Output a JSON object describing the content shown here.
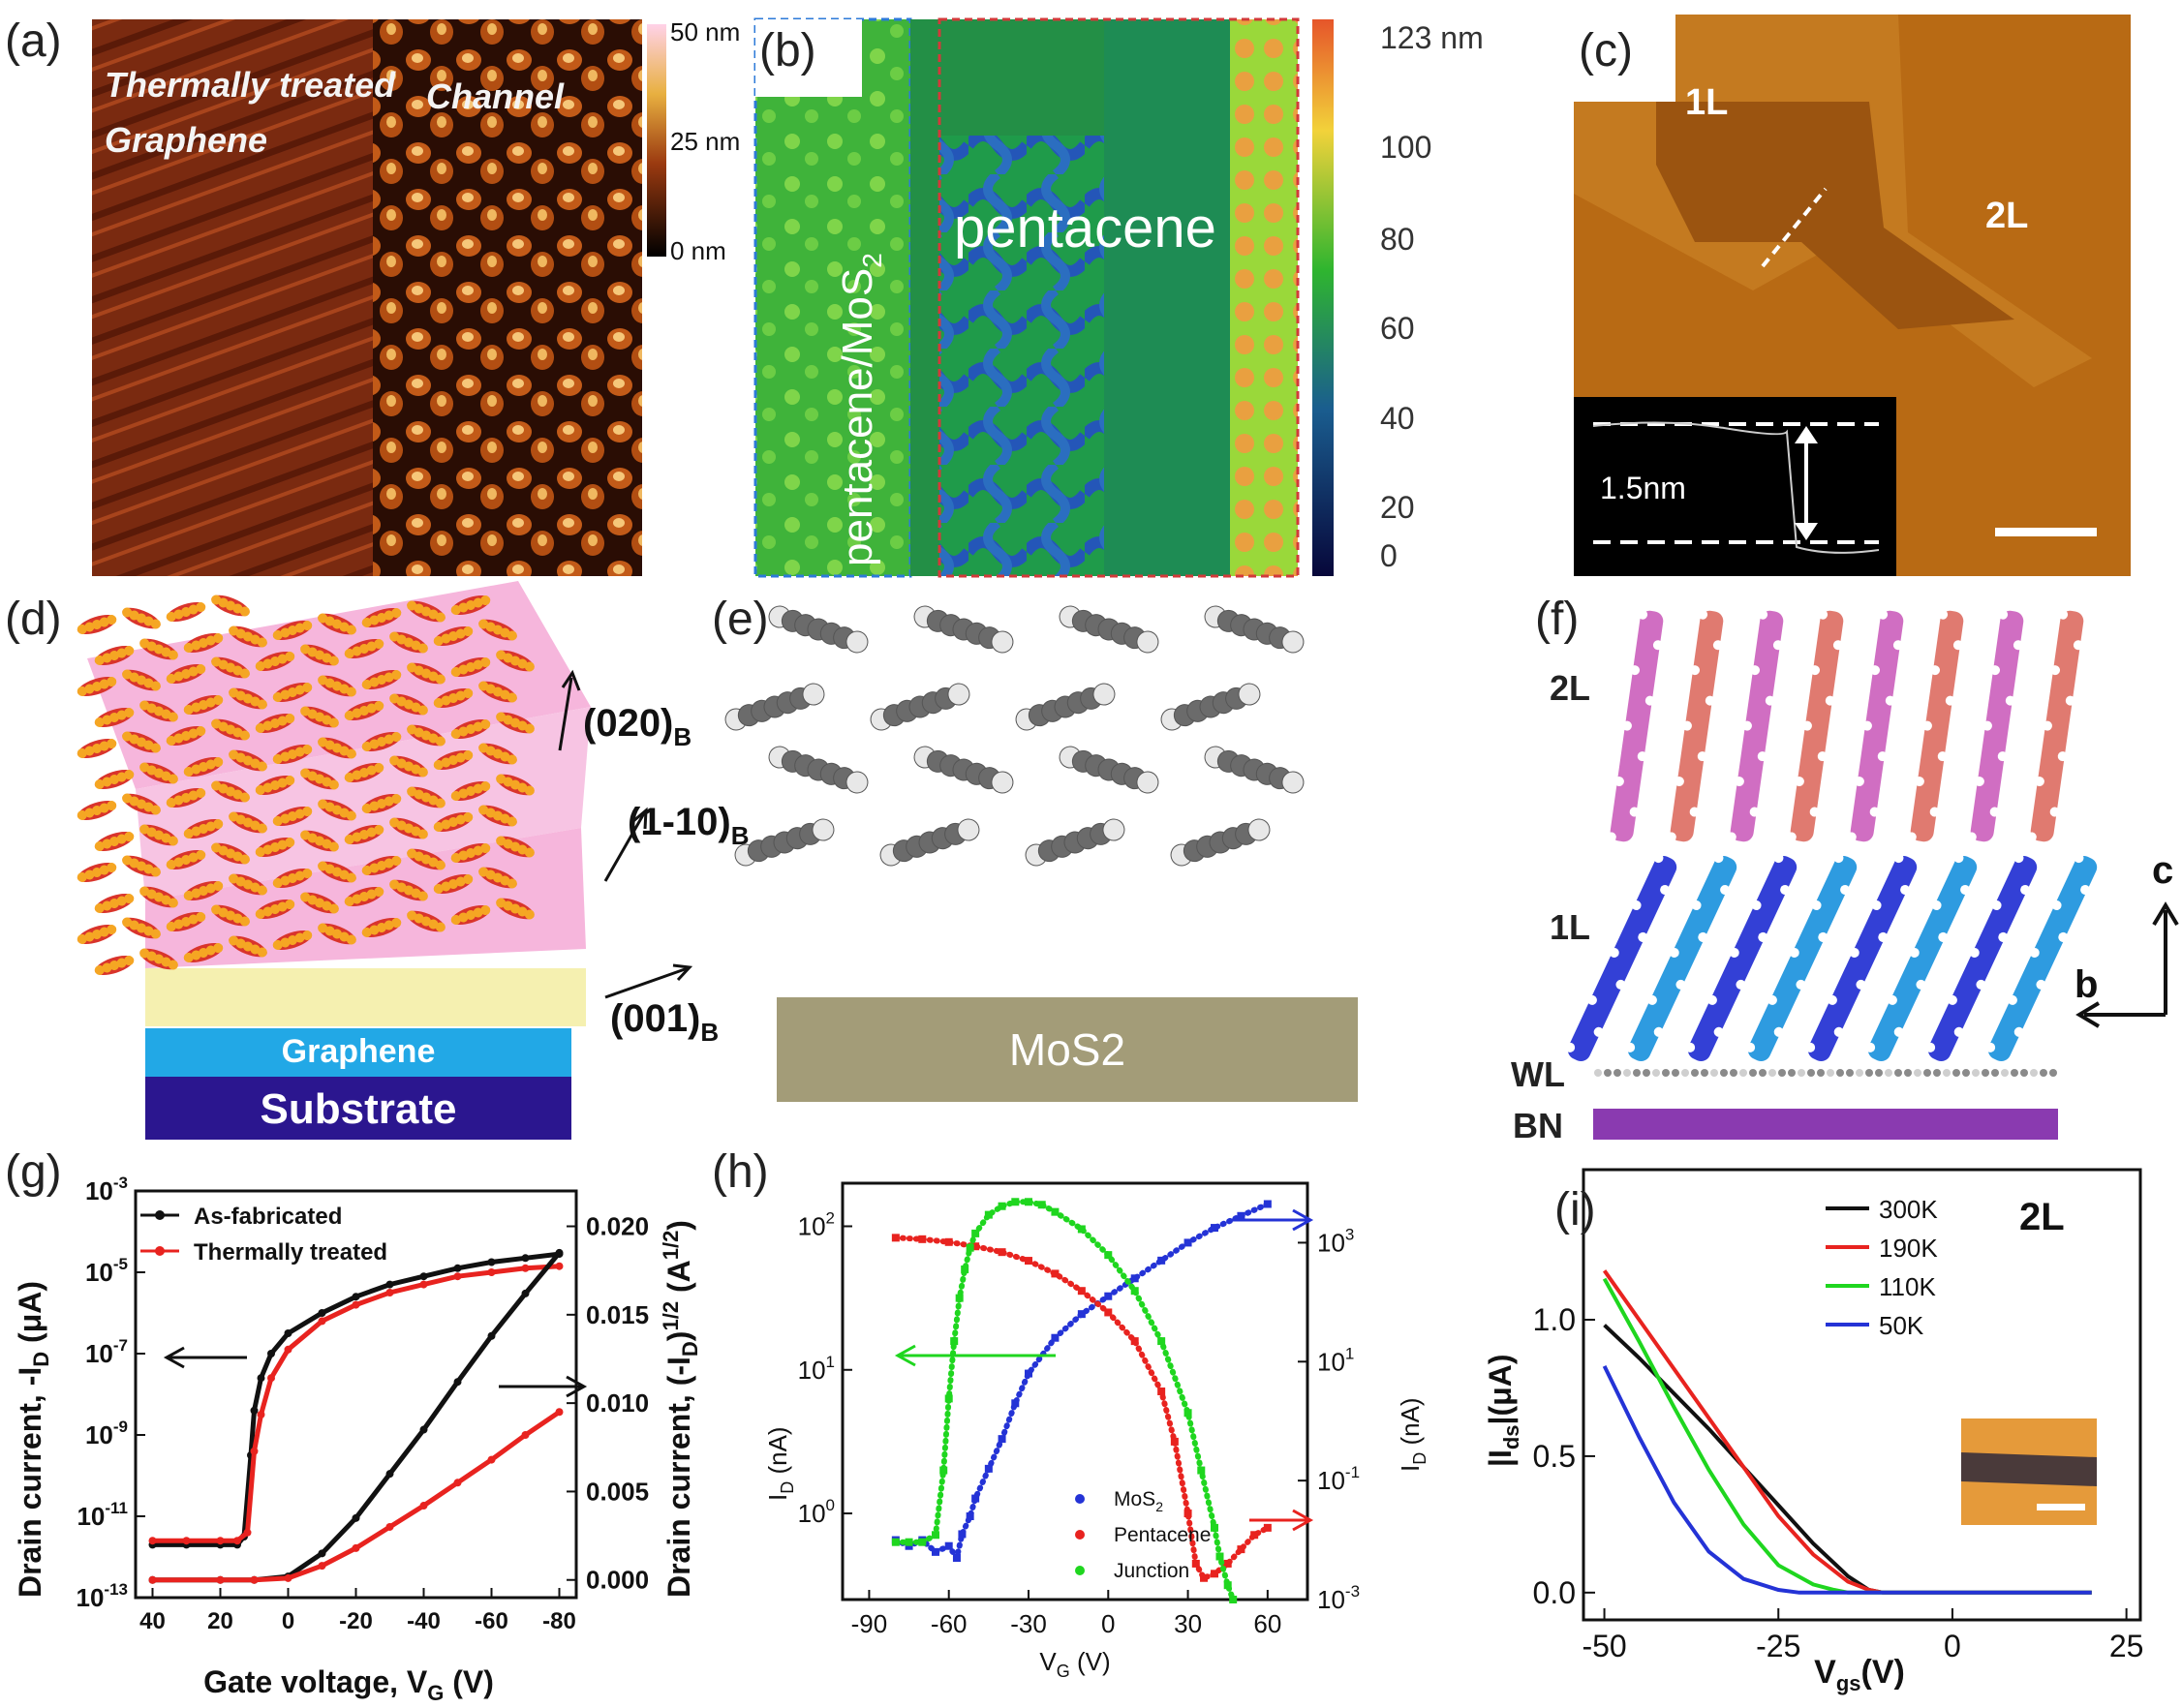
{
  "panels": {
    "a": {
      "label": "(a)",
      "graphene_label_line1": "Thermally treated",
      "graphene_label_line2": "Graphene",
      "channel_label": "Channel",
      "colorbar_ticks": [
        "50 nm",
        "25 nm",
        "0 nm"
      ]
    },
    "b": {
      "label": "(b)",
      "left_region": "pentacene/MoS",
      "left_region_sub": "2",
      "center_region": "pentacene",
      "colorbar_ticks": [
        "123 nm",
        "100",
        "80",
        "60",
        "40",
        "20",
        "0"
      ]
    },
    "c": {
      "label": "(c)",
      "layer_1": "1L",
      "layer_2": "2L",
      "inset_height": "1.5nm"
    },
    "d": {
      "label": "(d)",
      "dir_020": "(020)",
      "dir_1_10": "(1-10)",
      "dir_001": "(001)",
      "dir_sub": "B",
      "graphene": "Graphene",
      "substrate": "Substrate"
    },
    "e": {
      "label": "(e)",
      "substrate": "MoS2"
    },
    "f": {
      "label": "(f)",
      "layer_2": "2L",
      "layer_1": "1L",
      "wl": "WL",
      "bn": "BN",
      "axis_c": "c",
      "axis_b": "b"
    }
  },
  "colors": {
    "graphene": "#22a8e6",
    "substrate": "#2b168f",
    "mos2": "#a39c78",
    "bn": "#8a3ab0",
    "molecule_orange": "#f5a623",
    "molecule_red": "#d9342b",
    "molecule_pink": "#d06ec2",
    "molecule_salmon": "#e07a70",
    "molecule_blue": "#3340d6",
    "molecule_lightblue": "#2e9be0"
  },
  "chart_data": [
    {
      "id": "g",
      "type": "line",
      "panel_label": "(g)",
      "xlabel": "Gate voltage, V",
      "xlabel_sub": "G",
      "xlabel_unit": " (V)",
      "ylabel_left": "Drain current, -I",
      "ylabel_left_sub": "D",
      "ylabel_left_unit": " (μA)",
      "ylabel_right": "Drain current, (-I",
      "ylabel_right_sub": "D",
      "ylabel_right_unit": ")",
      "ylabel_right_sup": "1/2",
      "ylabel_right_tail": " (A",
      "ylabel_right_tail_sup": "1/2",
      "ylabel_right_close": ")",
      "xlim": [
        45,
        -85
      ],
      "xticks": [
        "40",
        "20",
        "0",
        "-20",
        "-40",
        "-60",
        "-80"
      ],
      "xtick_values": [
        40,
        20,
        0,
        -20,
        -40,
        -60,
        -80
      ],
      "ylim_left_log10": [
        -13,
        -3
      ],
      "yticks_left_base": "10",
      "yticks_left_exp": [
        "-3",
        "-5",
        "-7",
        "-9",
        "-11",
        "-13"
      ],
      "ytick_left_values": [
        -3,
        -5,
        -7,
        -9,
        -11,
        -13
      ],
      "ylim_right": [
        -0.001,
        0.022
      ],
      "yticks_right": [
        "0.020",
        "0.015",
        "0.010",
        "0.005",
        "0.000"
      ],
      "ytick_right_values": [
        0.02,
        0.015,
        0.01,
        0.005,
        0.0
      ],
      "legend": [
        "As-fabricated",
        "Thermally treated"
      ],
      "series": [
        {
          "name": "As-fabricated",
          "axis": "left",
          "color": "#111111",
          "x": [
            40,
            30,
            20,
            15,
            13,
            11,
            10,
            8,
            5,
            0,
            -10,
            -20,
            -30,
            -40,
            -50,
            -60,
            -70,
            -80
          ],
          "y": [
            -11.7,
            -11.7,
            -11.7,
            -11.7,
            -11.5,
            -9.5,
            -8.4,
            -7.6,
            -7.0,
            -6.5,
            -6.0,
            -5.6,
            -5.3,
            -5.1,
            -4.9,
            -4.75,
            -4.65,
            -4.55
          ]
        },
        {
          "name": "Thermally treated",
          "axis": "left",
          "color": "#e8231f",
          "x": [
            40,
            30,
            20,
            15,
            12,
            10,
            8,
            5,
            0,
            -10,
            -20,
            -30,
            -40,
            -50,
            -60,
            -70,
            -80
          ],
          "y": [
            -11.6,
            -11.6,
            -11.6,
            -11.6,
            -11.4,
            -9.4,
            -8.5,
            -7.6,
            -6.9,
            -6.2,
            -5.8,
            -5.5,
            -5.3,
            -5.1,
            -5.0,
            -4.9,
            -4.85
          ]
        },
        {
          "name": "As-fabricated sqrt",
          "axis": "right",
          "color": "#111111",
          "x": [
            40,
            20,
            10,
            0,
            -10,
            -20,
            -30,
            -40,
            -50,
            -60,
            -70,
            -80
          ],
          "y": [
            0.0,
            0.0,
            0.0,
            0.0002,
            0.0015,
            0.0035,
            0.006,
            0.0085,
            0.0112,
            0.0138,
            0.0162,
            0.0185
          ]
        },
        {
          "name": "Thermally treated sqrt",
          "axis": "right",
          "color": "#e8231f",
          "x": [
            40,
            20,
            10,
            0,
            -10,
            -20,
            -30,
            -40,
            -50,
            -60,
            -70,
            -80
          ],
          "y": [
            0.0,
            0.0,
            0.0,
            0.0001,
            0.0008,
            0.0018,
            0.003,
            0.0042,
            0.0055,
            0.0068,
            0.0082,
            0.0095
          ]
        }
      ]
    },
    {
      "id": "h",
      "type": "scatter",
      "panel_label": "(h)",
      "xlabel": "V",
      "xlabel_sub": "G",
      "xlabel_unit": " (V)",
      "ylabel_left": "I",
      "ylabel_left_sub": "D",
      "ylabel_left_unit": " (nA)",
      "ylabel_right": "I",
      "ylabel_right_sub": "D",
      "ylabel_right_unit": " (nA)",
      "xlim": [
        -100,
        75
      ],
      "xticks": [
        "-90",
        "-60",
        "-30",
        "0",
        "30",
        "60"
      ],
      "xtick_values": [
        -90,
        -60,
        -30,
        0,
        30,
        60
      ],
      "ylim_left_log10": [
        -0.6,
        2.3
      ],
      "yticks_left_base": "10",
      "yticks_left_exp": [
        "2",
        "1",
        "0"
      ],
      "ytick_left_values": [
        2,
        1,
        0
      ],
      "ylim_right_log10": [
        -3,
        4
      ],
      "yticks_right_base": "10",
      "yticks_right_exp": [
        "3",
        "1",
        "-1",
        "-3"
      ],
      "ytick_right_values": [
        3,
        1,
        -1,
        -3
      ],
      "legend": [
        "MoS",
        "Pentacene",
        "Junction"
      ],
      "legend_sub": [
        "2",
        "",
        ""
      ],
      "series": [
        {
          "name": "MoS2",
          "axis": "right",
          "color": "#2433d6",
          "x": [
            -80,
            -75,
            -70,
            -65,
            -60,
            -57,
            -55,
            -52,
            -50,
            -45,
            -40,
            -35,
            -30,
            -20,
            -10,
            0,
            10,
            20,
            30,
            40,
            50,
            60
          ],
          "y": [
            -2.0,
            -2.1,
            -2.0,
            -2.2,
            -2.1,
            -2.3,
            -1.9,
            -1.6,
            -1.3,
            -0.8,
            -0.3,
            0.3,
            0.8,
            1.4,
            1.8,
            2.1,
            2.4,
            2.7,
            3.0,
            3.25,
            3.45,
            3.65
          ]
        },
        {
          "name": "Pentacene",
          "axis": "left",
          "color": "#e8231f",
          "x": [
            -80,
            -70,
            -60,
            -50,
            -40,
            -30,
            -20,
            -10,
            0,
            10,
            20,
            25,
            30,
            33,
            36,
            40,
            45,
            50,
            55,
            60
          ],
          "y": [
            1.92,
            1.91,
            1.89,
            1.86,
            1.82,
            1.76,
            1.67,
            1.55,
            1.4,
            1.2,
            0.85,
            0.5,
            0.0,
            -0.35,
            -0.45,
            -0.42,
            -0.35,
            -0.25,
            -0.15,
            -0.1
          ]
        },
        {
          "name": "Junction",
          "axis": "left",
          "color": "#1fd61f",
          "x": [
            -80,
            -75,
            -70,
            -65,
            -62,
            -60,
            -58,
            -56,
            -54,
            -52,
            -50,
            -45,
            -40,
            -35,
            -30,
            -25,
            -20,
            -10,
            0,
            10,
            20,
            30,
            35,
            40,
            42,
            45,
            47
          ],
          "y": [
            -0.2,
            -0.2,
            -0.2,
            -0.15,
            0.3,
            0.8,
            1.2,
            1.5,
            1.7,
            1.85,
            1.95,
            2.08,
            2.14,
            2.17,
            2.17,
            2.15,
            2.1,
            1.98,
            1.8,
            1.55,
            1.2,
            0.7,
            0.3,
            -0.1,
            -0.3,
            -0.5,
            -0.6
          ]
        }
      ]
    },
    {
      "id": "i",
      "type": "line",
      "panel_label": "(i)",
      "annotation": "2L",
      "xlabel": "V",
      "xlabel_sub": "gs",
      "xlabel_unit": "(V)",
      "ylabel": "|I",
      "ylabel_sub": "ds",
      "ylabel_unit": "|(μA)",
      "xlim": [
        -53,
        27
      ],
      "ylim": [
        -0.1,
        1.55
      ],
      "xticks": [
        "-50",
        "-25",
        "0",
        "25"
      ],
      "xtick_values": [
        -50,
        -25,
        0,
        25
      ],
      "yticks": [
        "1.0",
        "0.5",
        "0.0"
      ],
      "ytick_values": [
        1.0,
        0.5,
        0.0
      ],
      "legend": [
        "300K",
        "190K",
        "110K",
        "50K"
      ],
      "series": [
        {
          "name": "300K",
          "color": "#111111",
          "x": [
            -50,
            -45,
            -40,
            -35,
            -30,
            -25,
            -20,
            -15,
            -12,
            -10,
            0,
            10,
            20
          ],
          "y": [
            0.98,
            0.86,
            0.73,
            0.6,
            0.46,
            0.32,
            0.18,
            0.06,
            0.01,
            0.0,
            0.0,
            0.0,
            0.0
          ]
        },
        {
          "name": "190K",
          "color": "#e8231f",
          "x": [
            -50,
            -45,
            -40,
            -35,
            -30,
            -25,
            -20,
            -15,
            -12,
            -10,
            0,
            10,
            20
          ],
          "y": [
            1.18,
            1.0,
            0.82,
            0.64,
            0.46,
            0.28,
            0.14,
            0.04,
            0.01,
            0.0,
            0.0,
            0.0,
            0.0
          ]
        },
        {
          "name": "110K",
          "color": "#1fd61f",
          "x": [
            -50,
            -45,
            -40,
            -35,
            -30,
            -25,
            -20,
            -17,
            -15,
            -12,
            0,
            10,
            20
          ],
          "y": [
            1.15,
            0.92,
            0.68,
            0.45,
            0.25,
            0.1,
            0.03,
            0.01,
            0.0,
            0.0,
            0.0,
            0.0,
            0.0
          ]
        },
        {
          "name": "50K",
          "color": "#2433d6",
          "x": [
            -50,
            -45,
            -40,
            -35,
            -30,
            -25,
            -22,
            -20,
            -15,
            0,
            10,
            20
          ],
          "y": [
            0.83,
            0.57,
            0.33,
            0.15,
            0.05,
            0.01,
            0.0,
            0.0,
            0.0,
            0.0,
            0.0,
            0.0
          ]
        }
      ]
    }
  ]
}
